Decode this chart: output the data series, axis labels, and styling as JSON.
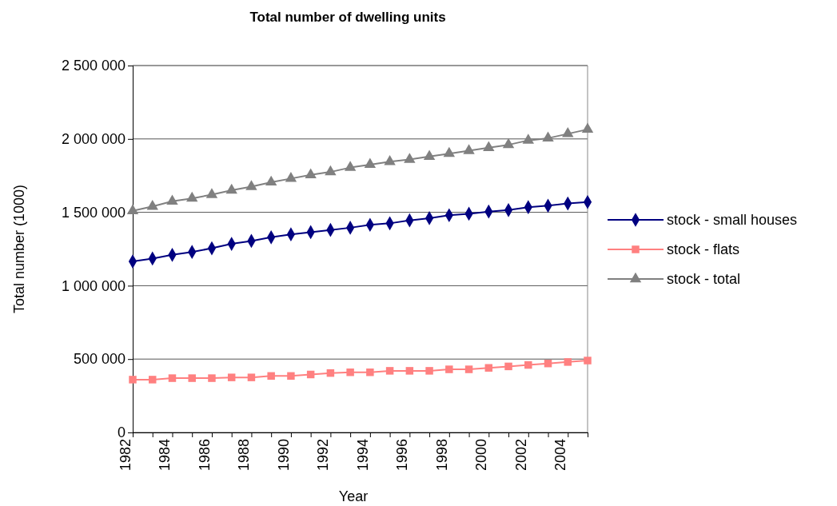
{
  "chart_data": {
    "type": "line",
    "title": "Total number of dwelling units",
    "xlabel": "Year",
    "ylabel": "Total number (1000)",
    "categories": [
      "1982",
      null,
      "1984",
      null,
      "1986",
      null,
      "1988",
      null,
      "1990",
      null,
      "1992",
      null,
      "1994",
      null,
      "1996",
      null,
      "1998",
      null,
      "2000",
      null,
      "2002",
      null,
      "2004",
      null
    ],
    "series": [
      {
        "name": "stock - small houses",
        "color": "#000080",
        "marker": "diamond",
        "values": [
          1165000,
          1185000,
          1210000,
          1230000,
          1255000,
          1285000,
          1305000,
          1330000,
          1350000,
          1365000,
          1380000,
          1395000,
          1415000,
          1425000,
          1445000,
          1460000,
          1480000,
          1490000,
          1505000,
          1515000,
          1535000,
          1545000,
          1560000,
          1570000
        ]
      },
      {
        "name": "stock - flats",
        "color": "#ff8080",
        "marker": "square",
        "values": [
          360000,
          360000,
          370000,
          370000,
          370000,
          375000,
          375000,
          385000,
          385000,
          395000,
          405000,
          410000,
          410000,
          420000,
          420000,
          420000,
          430000,
          430000,
          440000,
          450000,
          460000,
          470000,
          480000,
          490000
        ]
      },
      {
        "name": "stock - total",
        "color": "#808080",
        "marker": "triangle",
        "values": [
          1510000,
          1540000,
          1575000,
          1595000,
          1620000,
          1650000,
          1675000,
          1705000,
          1730000,
          1755000,
          1775000,
          1805000,
          1825000,
          1845000,
          1860000,
          1880000,
          1900000,
          1920000,
          1940000,
          1960000,
          1990000,
          2005000,
          2035000,
          2065000
        ]
      }
    ],
    "ylim": [
      0,
      2500000
    ],
    "yticks": [
      0,
      {
        "value": 500000,
        "label": "500 000"
      },
      {
        "value": 1000000,
        "label": "1 000 000"
      },
      {
        "value": 1500000,
        "label": "1 500 000"
      },
      {
        "value": 2000000,
        "label": "2 000 000"
      },
      {
        "value": 2500000,
        "label": "2 500 000"
      }
    ],
    "grid": "y",
    "legend": "right"
  }
}
